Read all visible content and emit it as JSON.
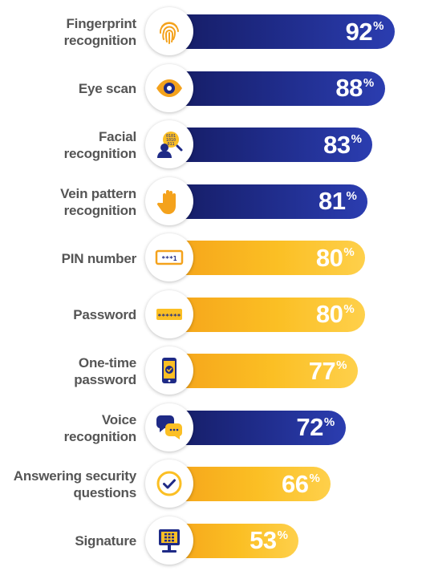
{
  "chart_data": {
    "type": "bar",
    "orientation": "horizontal",
    "categories": [
      "Fingerprint\nrecognition",
      "Eye scan",
      "Facial\nrecognition",
      "Vein pattern\nrecognition",
      "PIN number",
      "Password",
      "One-time\npassword",
      "Voice\nrecognition",
      "Answering security\nquestions",
      "Signature"
    ],
    "values": [
      92,
      88,
      83,
      81,
      80,
      80,
      77,
      72,
      66,
      53
    ],
    "value_labels": [
      "92",
      "88",
      "83",
      "81",
      "80",
      "80",
      "77",
      "72",
      "66",
      "53"
    ],
    "unit": "%",
    "bar_colors": [
      "blue",
      "blue",
      "blue",
      "blue",
      "yellow",
      "yellow",
      "yellow",
      "blue",
      "yellow",
      "yellow"
    ],
    "icons": [
      "fingerprint-icon",
      "eye-icon",
      "face-scan-icon",
      "hand-icon",
      "pin-card-icon",
      "password-field-icon",
      "phone-check-icon",
      "speech-bubbles-icon",
      "checkmark-icon",
      "signature-pad-icon"
    ],
    "xlim": [
      0,
      100
    ]
  },
  "colors": {
    "blue": "#1e2a86",
    "yellow": "#fbbf24",
    "label_text": "#555555",
    "value_text": "#ffffff"
  }
}
